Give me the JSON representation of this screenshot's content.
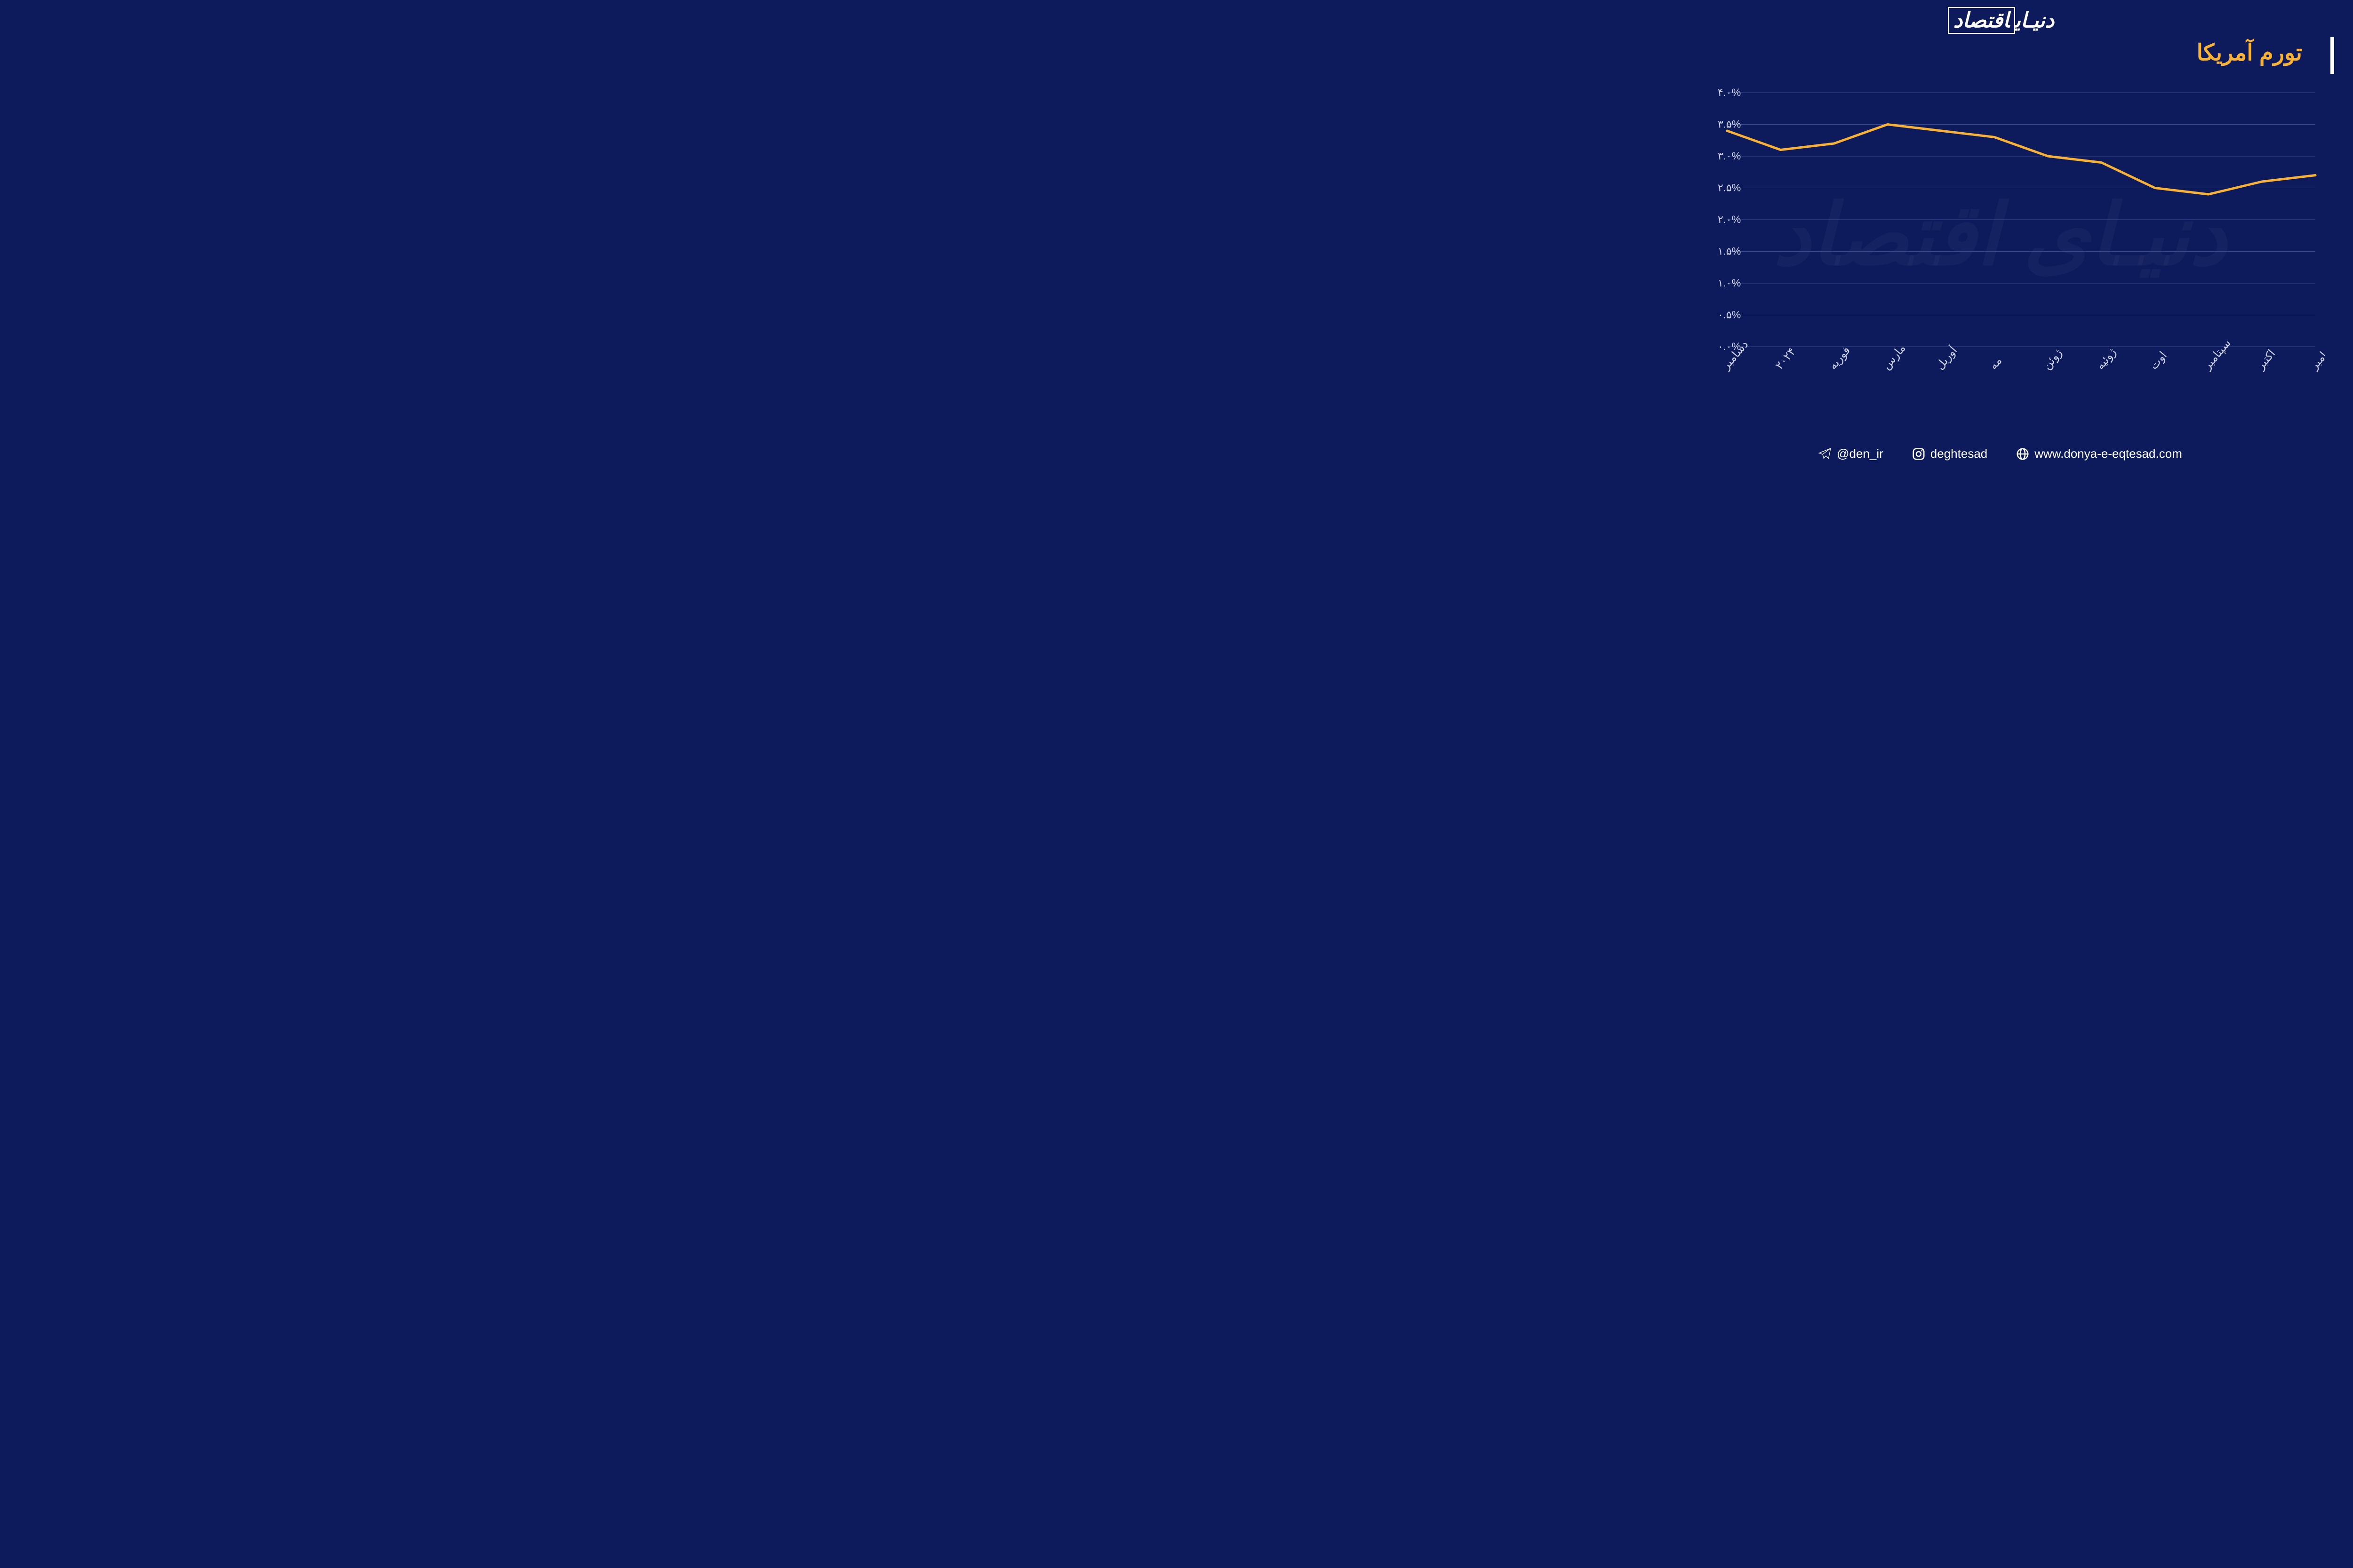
{
  "brand": {
    "name_part1": "دنیـای",
    "name_part2": "اقتصاد"
  },
  "title": "تورم آمریکا",
  "watermark": "دنیـای اقتصاد",
  "chart": {
    "type": "line",
    "background_color": "#0d1b5c",
    "grid_color": "#3a4a8f",
    "line_color": "#f9b233",
    "line_width": 5,
    "axis_label_color": "#d0d4e8",
    "axis_label_fontsize": 22,
    "x_label_fontsize": 24,
    "ylim": [
      0.0,
      4.0
    ],
    "ytick_step": 0.5,
    "y_labels": [
      "۰.۰%",
      "۰.۵%",
      "۱.۰%",
      "۱.۵%",
      "۲.۰%",
      "۲.۵%",
      "۳.۰%",
      "۳.۵%",
      "۴.۰%"
    ],
    "x_labels": [
      "دسامبر",
      "۲۰۲۴",
      "فوریه",
      "مارس",
      "آوریل",
      "مه",
      "ژوئن",
      "ژوئیه",
      "اوت",
      "سپتامبر",
      "اکتبر",
      "نوامبر"
    ],
    "values": [
      3.4,
      3.1,
      3.2,
      3.5,
      3.4,
      3.3,
      3.0,
      2.9,
      2.5,
      2.4,
      2.6,
      2.7
    ]
  },
  "footer": {
    "telegram": "@den_ir",
    "instagram": "deghtesad",
    "website": "www.donya-e-eqtesad.com"
  }
}
